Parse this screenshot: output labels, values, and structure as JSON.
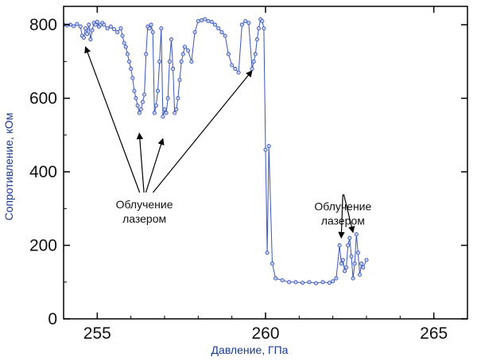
{
  "chart_data": {
    "type": "scatter",
    "xlabel": "Давление, ГПа",
    "ylabel": "Сопротивление, кОм",
    "xlim": [
      254,
      266
    ],
    "ylim": [
      0,
      850
    ],
    "xticks": [
      255,
      260,
      265
    ],
    "yticks": [
      0,
      200,
      400,
      600,
      800
    ],
    "grid": false,
    "legend": "none",
    "series_color": "#3a55b8",
    "marker": "circle-with-line",
    "annotations": [
      {
        "label_lines": [
          "Облучение",
          "лазером"
        ],
        "anchor_x": 256.4,
        "anchor_y": 335,
        "arrow_targets": [
          [
            254.65,
            740
          ],
          [
            256.25,
            505
          ],
          [
            256.95,
            490
          ],
          [
            259.6,
            675
          ]
        ]
      },
      {
        "label_lines": [
          "Облучение",
          "лазером"
        ],
        "anchor_x": 262.3,
        "anchor_y": 330,
        "arrow_targets": [
          [
            262.25,
            220
          ],
          [
            262.6,
            235
          ]
        ]
      }
    ],
    "series": [
      {
        "x": [
          254.0,
          254.1,
          254.2,
          254.3,
          254.4,
          254.5,
          254.55,
          254.6,
          254.65,
          254.7,
          254.75,
          254.8,
          254.85,
          254.9,
          254.95,
          255.0,
          255.05,
          255.1,
          255.15,
          255.2,
          255.3,
          255.4,
          255.5,
          255.6,
          255.7,
          255.75,
          255.8,
          255.85,
          255.9,
          255.95,
          256.0,
          256.05,
          256.1,
          256.15,
          256.2,
          256.25,
          256.3,
          256.35,
          256.4,
          256.45,
          256.5,
          256.55,
          256.6,
          256.65,
          256.7,
          256.75,
          256.8,
          256.85,
          256.9,
          256.95,
          257.0,
          257.05,
          257.1,
          257.15,
          257.2,
          257.25,
          257.3,
          257.35,
          257.4,
          257.45,
          257.5,
          257.55,
          257.6,
          257.7,
          257.8,
          257.9,
          258.0,
          258.1,
          258.2,
          258.3,
          258.4,
          258.5,
          258.6,
          258.7,
          258.8,
          258.9,
          259.0,
          259.1,
          259.2,
          259.3,
          259.4,
          259.5,
          259.6,
          259.65,
          259.7,
          259.75,
          259.8,
          259.85,
          259.9,
          259.95,
          260.0,
          260.05,
          260.1,
          260.2,
          260.3,
          260.5,
          260.7,
          260.9,
          261.1,
          261.3,
          261.5,
          261.7,
          261.9,
          262.0,
          262.1,
          262.2,
          262.25,
          262.3,
          262.35,
          262.4,
          262.45,
          262.5,
          262.55,
          262.6,
          262.65,
          262.7,
          262.75,
          262.8,
          262.85,
          262.9,
          263.0
        ],
        "y": [
          800,
          798,
          800,
          796,
          802,
          795,
          770,
          765,
          790,
          775,
          800,
          760,
          785,
          805,
          800,
          808,
          795,
          800,
          805,
          800,
          790,
          795,
          788,
          780,
          790,
          770,
          750,
          740,
          720,
          700,
          680,
          655,
          620,
          600,
          580,
          560,
          570,
          590,
          610,
          720,
          795,
          790,
          800,
          780,
          560,
          580,
          620,
          700,
          790,
          550,
          570,
          560,
          600,
          700,
          760,
          680,
          560,
          570,
          600,
          650,
          700,
          720,
          740,
          730,
          700,
          780,
          810,
          812,
          815,
          810,
          808,
          800,
          790,
          780,
          770,
          720,
          690,
          680,
          670,
          800,
          810,
          805,
          680,
          700,
          720,
          760,
          790,
          815,
          810,
          790,
          460,
          180,
          470,
          150,
          110,
          105,
          100,
          100,
          98,
          100,
          97,
          100,
          98,
          102,
          110,
          200,
          150,
          160,
          130,
          140,
          200,
          220,
          170,
          110,
          150,
          230,
          180,
          120,
          150,
          140,
          160
        ]
      }
    ]
  }
}
